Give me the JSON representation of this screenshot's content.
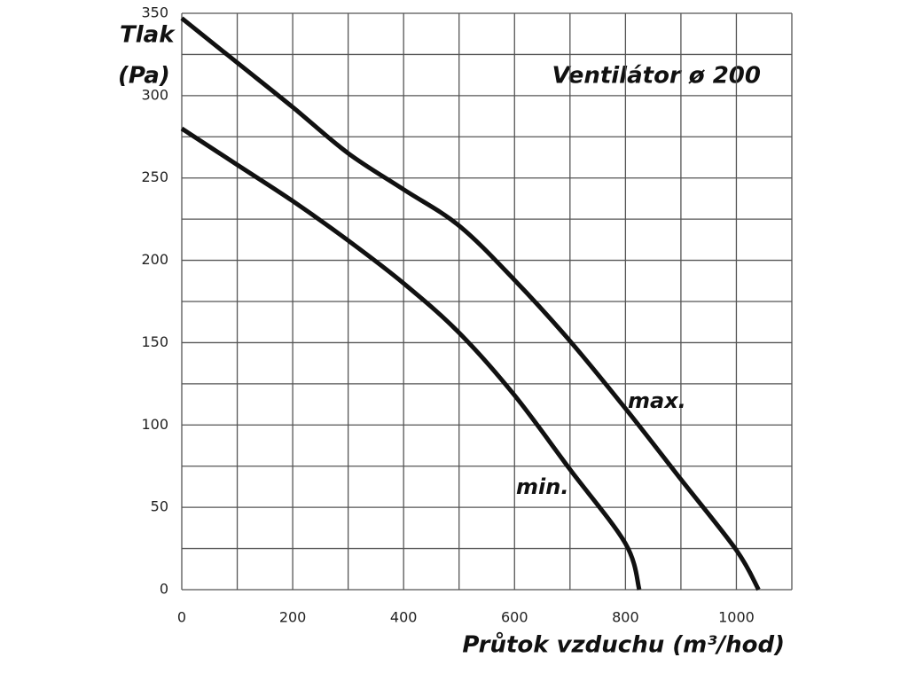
{
  "chart_data": {
    "type": "line",
    "title": "Ventilátor ø 200",
    "ylabel_lines": [
      "Tlak",
      "(Pa)"
    ],
    "xlabel": "Průtok vzduchu (m³/hod)",
    "xlim": [
      0,
      1100
    ],
    "ylim": [
      0,
      350
    ],
    "xticks": [
      0,
      200,
      400,
      600,
      800,
      1000
    ],
    "yticks": [
      0,
      50,
      100,
      150,
      200,
      250,
      300,
      350
    ],
    "x_minor_grid": [
      100,
      300,
      500,
      700,
      900,
      1100
    ],
    "y_minor_grid": [
      25,
      75,
      125,
      175,
      225,
      275,
      325
    ],
    "grid": true,
    "series": [
      {
        "name": "max.",
        "color": "#111111",
        "x": [
          0,
          100,
          200,
          300,
          400,
          500,
          600,
          700,
          800,
          900,
          1000,
          1040
        ],
        "values": [
          347,
          320,
          293,
          265,
          243,
          221,
          188,
          151,
          110,
          67,
          24,
          0
        ]
      },
      {
        "name": "min.",
        "color": "#111111",
        "x": [
          0,
          100,
          200,
          300,
          400,
          500,
          600,
          700,
          800,
          825
        ],
        "values": [
          280,
          258,
          236,
          212,
          186,
          156,
          118,
          73,
          28,
          0
        ]
      }
    ]
  }
}
